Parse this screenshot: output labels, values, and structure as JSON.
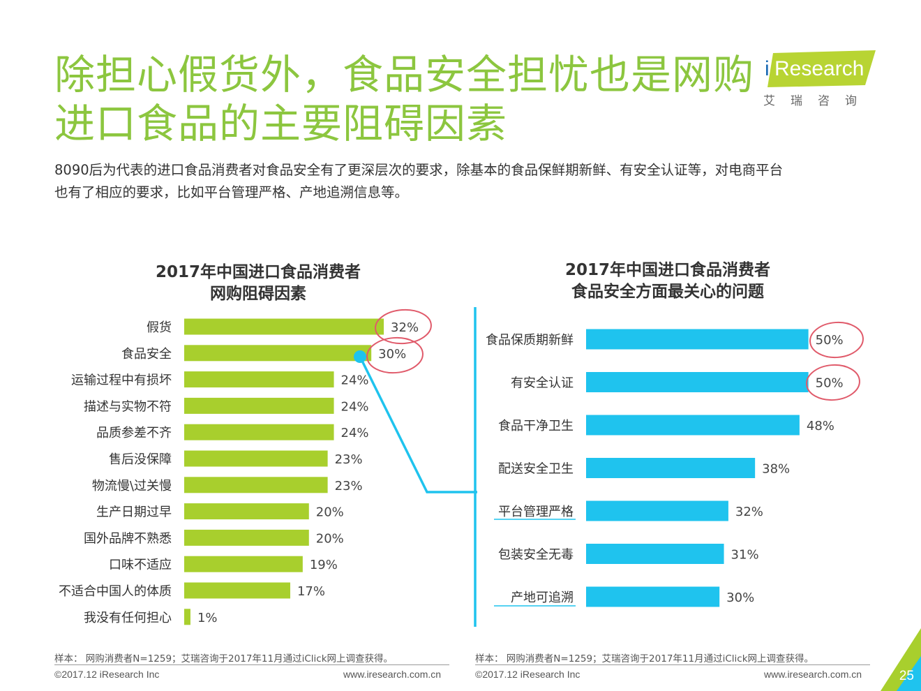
{
  "header": {
    "title_line1": "除担心假货外，食品安全担忧也是网购",
    "title_line2": "进口食品的主要阻碍因素",
    "subtitle_line1": "8090后为代表的进口食品消费者对食品安全有了更深层次的要求，除基本的食品保鲜期新鲜、有安全认证等，对电商平台",
    "subtitle_line2": "也有了相应的要求，比如平台管理严格、产地追溯信息等。"
  },
  "logo": {
    "letter": "i",
    "word": "Research",
    "cn": "艾瑞咨询"
  },
  "chart_data": [
    {
      "type": "bar",
      "orientation": "horizontal",
      "title_line1": "2017年中国进口食品消费者",
      "title_line2": "网购阻碍因素",
      "categories": [
        "假货",
        "食品安全",
        "运输过程中有损坏",
        "描述与实物不符",
        "品质参差不齐",
        "售后没保障",
        "物流慢\\过关慢",
        "生产日期过早",
        "国外品牌不熟悉",
        "口味不适应",
        "不适合中国人的体质",
        "我没有任何担心"
      ],
      "values": [
        32,
        30,
        24,
        24,
        24,
        23,
        23,
        20,
        20,
        19,
        17,
        1
      ],
      "labels": [
        "32%",
        "30%",
        "24%",
        "24%",
        "24%",
        "23%",
        "23%",
        "20%",
        "20%",
        "19%",
        "17%",
        "1%"
      ],
      "color": "#a8cf2d",
      "xlim": [
        0,
        33
      ]
    },
    {
      "type": "bar",
      "orientation": "horizontal",
      "title_line1": "2017年中国进口食品消费者",
      "title_line2": "食品安全方面最关心的问题",
      "categories": [
        "食品保质期新鲜",
        "有安全认证",
        "食品干净卫生",
        "配送安全卫生",
        "平台管理严格",
        "包装安全无毒",
        "产地可追溯"
      ],
      "values": [
        50,
        50,
        48,
        38,
        32,
        31,
        30
      ],
      "labels": [
        "50%",
        "50%",
        "48%",
        "38%",
        "32%",
        "31%",
        "30%"
      ],
      "color": "#1fc3ee",
      "xlim": [
        0,
        51
      ]
    }
  ],
  "footer": {
    "sample_left": "样本： 网购消费者N=1259；艾瑞咨询于2017年11月通过iClick网上调查获得。",
    "sample_right": "样本： 网购消费者N=1259；艾瑞咨询于2017年11月通过iClick网上调查获得。",
    "copyright_left": "©2017.12 iResearch Inc",
    "copyright_right": "©2017.12 iResearch Inc",
    "site_left": "www.iresearch.com.cn",
    "site_right": "www.iresearch.com.cn",
    "page": "25"
  },
  "colors": {
    "accent_green": "#8cc63f",
    "bar_green": "#a8cf2d",
    "bar_blue": "#1fc3ee",
    "annotation_red": "#e05a6a"
  }
}
